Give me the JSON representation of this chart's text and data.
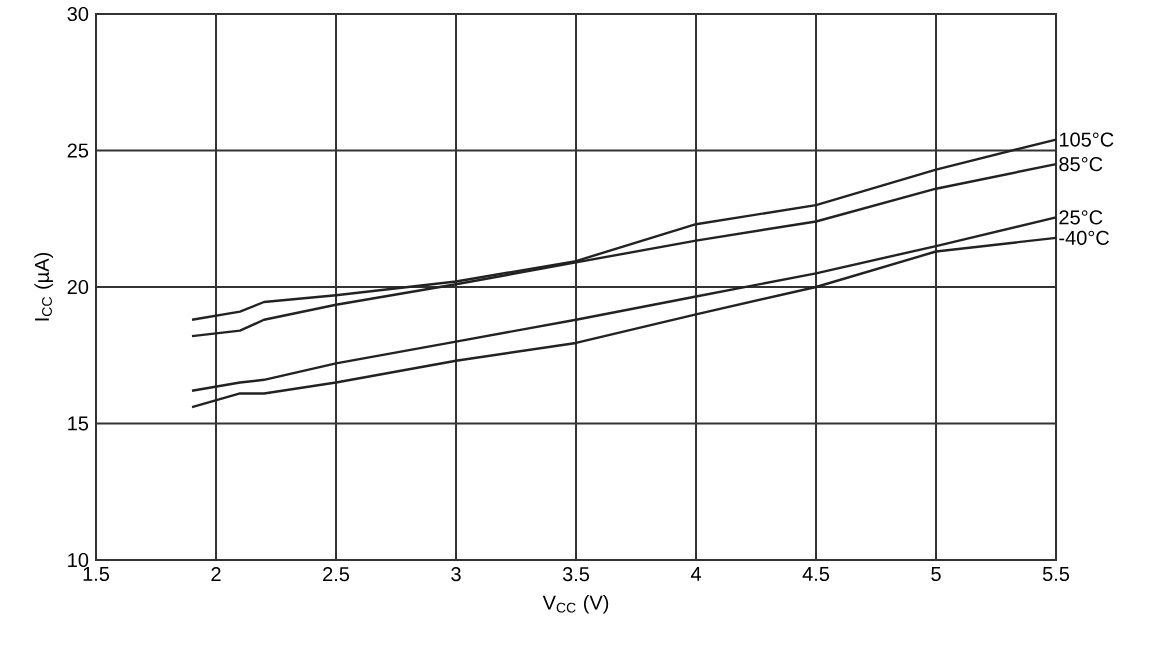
{
  "chart_data": {
    "type": "line",
    "xlabel": "V$_{CC}$ (V)",
    "ylabel": "I$_{CC}$ (µA)",
    "xlim": [
      1.5,
      5.5
    ],
    "ylim": [
      10,
      30
    ],
    "xticks": [
      1.5,
      2,
      2.5,
      3,
      3.5,
      4,
      4.5,
      5,
      5.5
    ],
    "yticks": [
      10,
      15,
      20,
      25,
      30
    ],
    "grid": true,
    "legend": false,
    "marker": "none",
    "line_style": "solid",
    "x": [
      1.9,
      2.1,
      2.2,
      2.5,
      3.0,
      3.5,
      4.0,
      4.5,
      5.0,
      5.5
    ],
    "series": [
      {
        "name": "105°C",
        "color": "#222222",
        "values": [
          18.8,
          19.1,
          19.45,
          19.7,
          20.2,
          20.95,
          22.3,
          23.0,
          24.3,
          25.4
        ]
      },
      {
        "name": "85°C",
        "color": "#222222",
        "values": [
          18.2,
          18.4,
          18.8,
          19.35,
          20.1,
          20.9,
          21.7,
          22.4,
          23.6,
          24.5
        ]
      },
      {
        "name": "25°C",
        "color": "#222222",
        "values": [
          16.2,
          16.5,
          16.6,
          17.2,
          18.0,
          18.8,
          19.65,
          20.5,
          21.5,
          22.55
        ]
      },
      {
        "name": "-40°C",
        "color": "#222222",
        "values": [
          15.6,
          16.1,
          16.1,
          16.5,
          17.3,
          17.95,
          19.0,
          20.0,
          21.3,
          21.8
        ]
      }
    ]
  }
}
